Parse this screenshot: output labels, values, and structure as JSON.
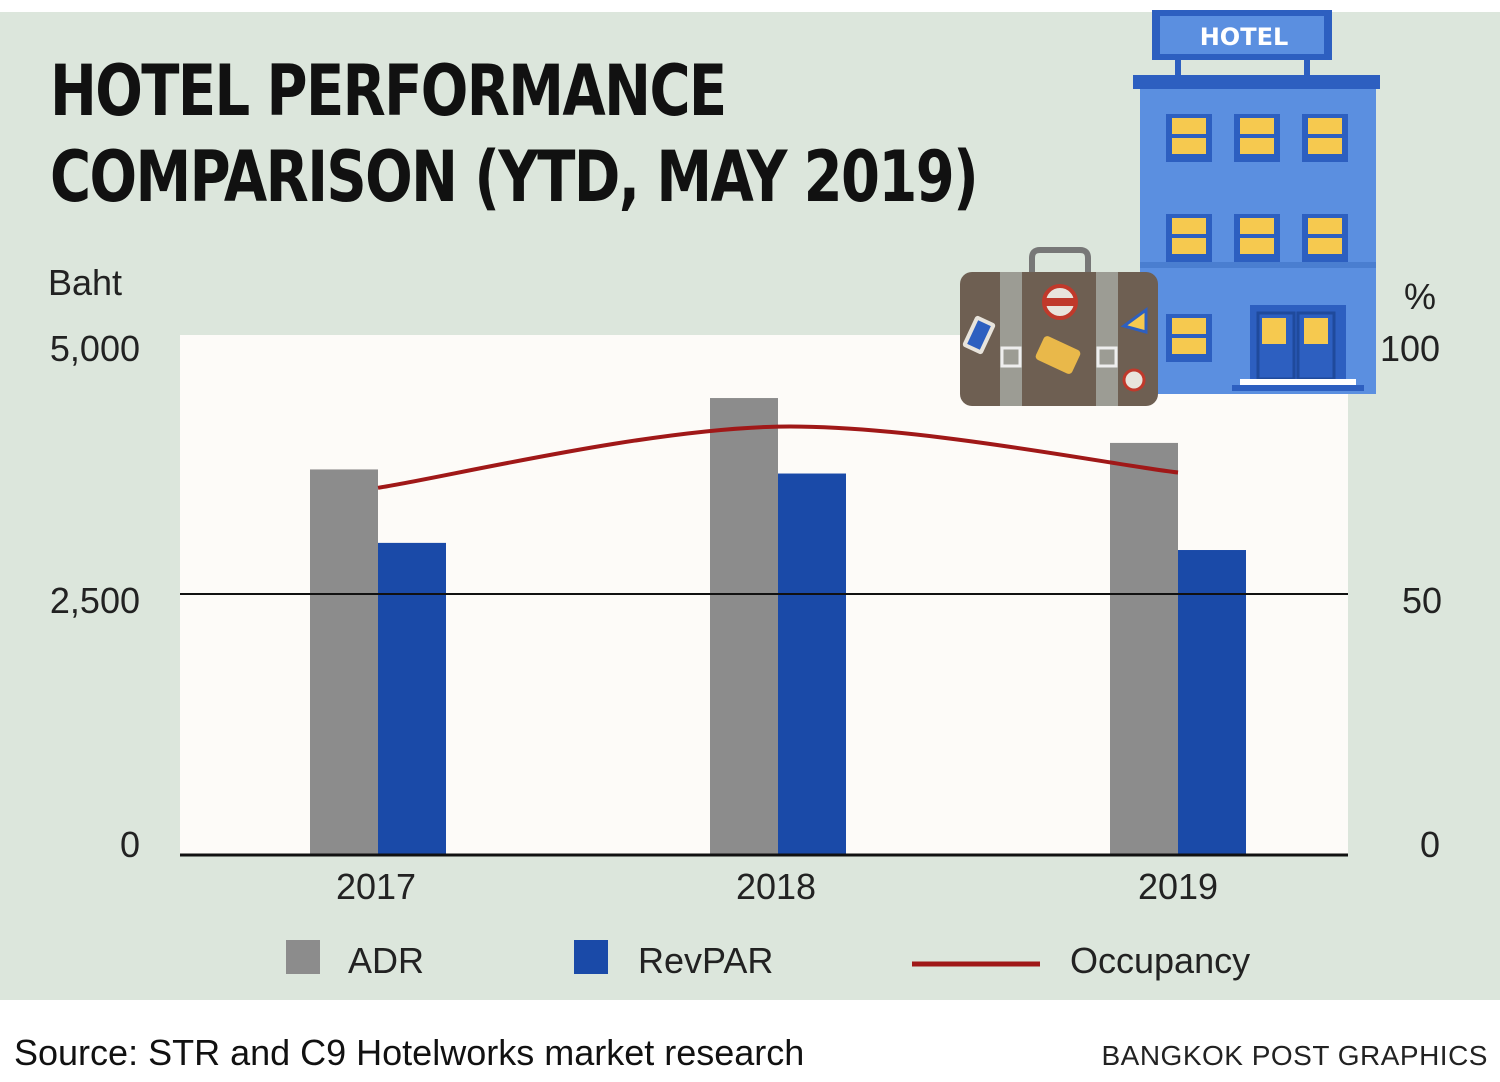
{
  "header": {
    "title_line1": "HOTEL PERFORMANCE",
    "title_line2": "COMPARISON (YTD, MAY 2019)"
  },
  "left_axis": {
    "unit": "Baht",
    "ticks": [
      "5,000",
      "2,500",
      "0"
    ]
  },
  "right_axis": {
    "unit": "%",
    "ticks": [
      "100",
      "50",
      "0"
    ]
  },
  "hotel_sign": "HOTEL",
  "legend": {
    "adr": "ADR",
    "revpar": "RevPAR",
    "occupancy": "Occupancy"
  },
  "footer": {
    "source": "Source: STR and C9 Hotelworks market research",
    "credit": "BANGKOK POST GRAPHICS"
  },
  "colors": {
    "adr": "#8c8c8c",
    "revpar": "#1a4aa8",
    "occupancy": "#a01818",
    "hotel": "#5b8fe0",
    "suitcase": "#6e5f52"
  },
  "chart_data": {
    "type": "bar",
    "categories": [
      "2017",
      "2018",
      "2019"
    ],
    "series": [
      {
        "name": "ADR",
        "axis": "left",
        "values": [
          3780,
          4480,
          4040
        ]
      },
      {
        "name": "RevPAR",
        "axis": "left",
        "values": [
          3060,
          3740,
          2990
        ]
      },
      {
        "name": "Occupancy",
        "type": "line",
        "axis": "right",
        "values": [
          72,
          84,
          75
        ]
      }
    ],
    "ylabel_left": "Baht",
    "ylim_left": [
      0,
      5000
    ],
    "ylabel_right": "%",
    "ylim_right": [
      0,
      100
    ],
    "grid": "horizontal line at 2,500",
    "legend_position": "bottom"
  }
}
